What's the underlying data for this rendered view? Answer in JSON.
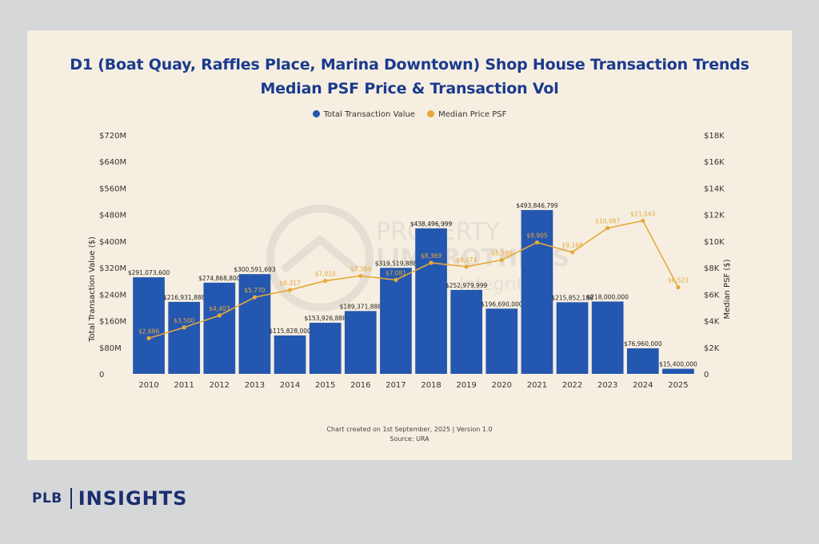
{
  "brand": {
    "short": "PLB",
    "name": "INSIGHTS"
  },
  "header": {
    "title_line1": "D1 (Boat Quay, Raffles Place, Marina Downtown) Shop House Transaction Trends",
    "title_line2": "Median PSF Price & Transaction Vol"
  },
  "legend": {
    "items": [
      "Total Transaction Value",
      "Median Price PSF"
    ]
  },
  "footer": {
    "line1": "Chart created on 1st September, 2025 | Version 1.0",
    "line2": "Source: URA"
  },
  "watermark": {
    "text1": "PROPERTY",
    "text2": "LIMBROTHERS",
    "text3": "Integrity"
  },
  "chart_data": {
    "type": "bar",
    "title": "D1 (Boat Quay, Raffles Place, Marina Downtown) Shop House Transaction Trends",
    "subtitle": "Median PSF Price & Transaction Vol",
    "categories": [
      "2010",
      "2011",
      "2012",
      "2013",
      "2014",
      "2015",
      "2016",
      "2017",
      "2018",
      "2019",
      "2020",
      "2021",
      "2022",
      "2023",
      "2024",
      "2025"
    ],
    "ylabel": "Total Transaction Value ($)",
    "y2label": "Median PSF ($)",
    "ylim": [
      0,
      720000000
    ],
    "y2lim": [
      0,
      18000
    ],
    "yticks": [
      "0",
      "$80M",
      "$160M",
      "$240M",
      "$320M",
      "$400M",
      "$480M",
      "$560M",
      "$640M",
      "$720M"
    ],
    "y2ticks": [
      "0",
      "$2K",
      "$4K",
      "$6K",
      "$8K",
      "$10K",
      "$12K",
      "$14K",
      "$16K",
      "$18K"
    ],
    "grid": false,
    "legend_position": "top",
    "colors": {
      "bars": "#2457b0",
      "line": "#e6a93a"
    },
    "series": [
      {
        "name": "Total Transaction Value",
        "kind": "bar",
        "axis": "left",
        "values": [
          291073600,
          216931888,
          274868800,
          300591693,
          115828000,
          153926888,
          189371888,
          319519888,
          438496999,
          252979999,
          196690000,
          493846799,
          215852188,
          218000000,
          76960000,
          15400000
        ],
        "labels": [
          "$291,073,600",
          "$216,931,888",
          "$274,868,800",
          "$300,591,693",
          "$115,828,000",
          "$153,926,888",
          "$189,371,888",
          "$319,519,888",
          "$438,496,999",
          "$252,979,999",
          "$196,690,000",
          "$493,846,799",
          "$215,852,188",
          "$218,000,000",
          "$76,960,000",
          "$15,400,000"
        ]
      },
      {
        "name": "Median Price PSF",
        "kind": "line",
        "axis": "right",
        "values": [
          2686,
          3500,
          4403,
          5770,
          6317,
          7010,
          7384,
          7081,
          8369,
          8074,
          8586,
          9905,
          9168,
          10987,
          11543,
          6523
        ],
        "labels": [
          "$2,686",
          "$3,500",
          "$4,403",
          "$5,770",
          "$6,317",
          "$7,010",
          "$7,384",
          "$7,081",
          "$8,369",
          "$8,074",
          "$8,586",
          "$9,905",
          "$9,168",
          "$10,987",
          "$11,543",
          "$6,523"
        ]
      }
    ]
  }
}
